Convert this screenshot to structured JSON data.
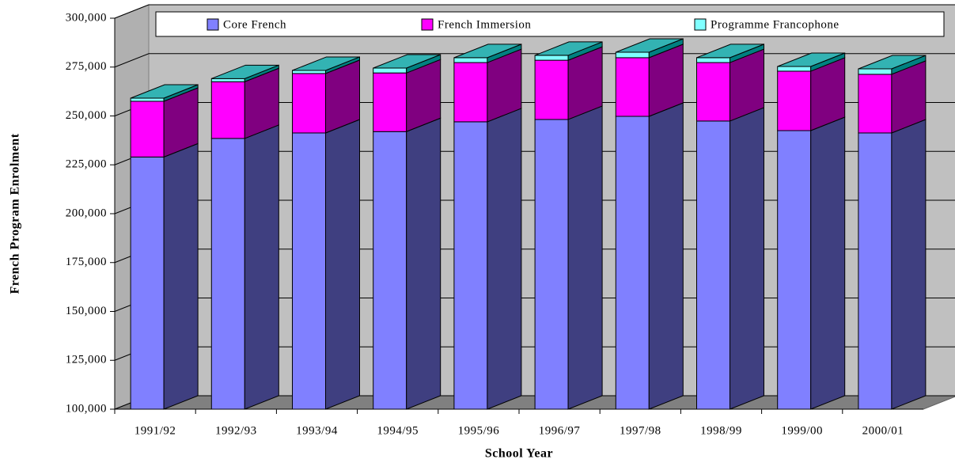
{
  "chart_data": {
    "type": "bar3d_stacked",
    "x_label": "School Year",
    "y_label": "French Program Enrolment",
    "categories": [
      "1991/92",
      "1992/93",
      "1993/94",
      "1994/95",
      "1995/96",
      "1996/97",
      "1997/98",
      "1998/99",
      "1999/00",
      "2000/01"
    ],
    "series": [
      {
        "name": "Core French",
        "color": "#8080ff",
        "side": "#3f3f80",
        "values": [
          229000,
          238500,
          241300,
          242000,
          247000,
          248200,
          249800,
          247400,
          242500,
          241300
        ]
      },
      {
        "name": "French Immersion",
        "color": "#ff00ff",
        "side": "#800080",
        "values": [
          28500,
          29000,
          30400,
          30000,
          30300,
          30300,
          30000,
          29900,
          30400,
          30000
        ]
      },
      {
        "name": "Programme Francophone",
        "color": "#80ffff",
        "side": "#008080",
        "values": [
          1600,
          1600,
          1600,
          2500,
          2500,
          2500,
          2800,
          2500,
          2400,
          2800
        ]
      }
    ],
    "ylim": [
      100000,
      300000
    ],
    "yticks": [
      {
        "value": 100000,
        "label": "100,000"
      },
      {
        "value": 125000,
        "label": "125,000"
      },
      {
        "value": 150000,
        "label": "150,000"
      },
      {
        "value": 175000,
        "label": "175,000"
      },
      {
        "value": 200000,
        "label": "200,000"
      },
      {
        "value": 225000,
        "label": "225,000"
      },
      {
        "value": 250000,
        "label": "250,000"
      },
      {
        "value": 275000,
        "label": "275,000"
      },
      {
        "value": 300000,
        "label": "300,000"
      }
    ],
    "grid": true,
    "legend": "top"
  }
}
